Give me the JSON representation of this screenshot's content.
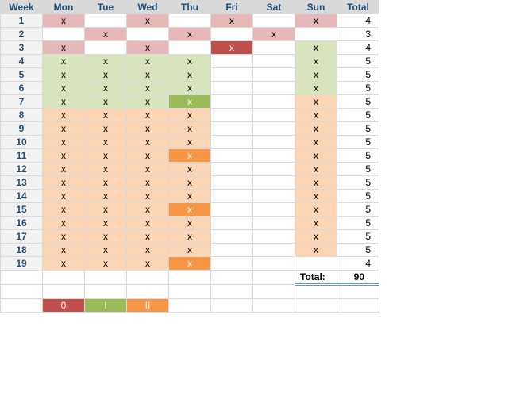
{
  "colors": {
    "pink": "#e6b8b7",
    "green_light": "#d8e4bc",
    "peach": "#fcd5b4",
    "red": "#c0504d",
    "green": "#9bbb59",
    "orange": "#f79646",
    "header_bg": "#d9d9d9",
    "header_text": "#1f4e79"
  },
  "headers": [
    "Week",
    "Mon",
    "Tue",
    "Wed",
    "Thu",
    "Fri",
    "Sat",
    "Sun",
    "Total"
  ],
  "rows": [
    {
      "week": "1",
      "cells": [
        [
          "x",
          "pink"
        ],
        [
          "",
          ""
        ],
        [
          "x",
          "pink"
        ],
        [
          "",
          ""
        ],
        [
          "x",
          "pink"
        ],
        [
          "",
          ""
        ],
        [
          "x",
          "pink"
        ]
      ],
      "total": "4"
    },
    {
      "week": "2",
      "cells": [
        [
          "",
          ""
        ],
        [
          "x",
          "pink"
        ],
        [
          "",
          ""
        ],
        [
          "x",
          "pink"
        ],
        [
          "",
          ""
        ],
        [
          "x",
          "pink"
        ],
        [
          "",
          ""
        ]
      ],
      "total": "3"
    },
    {
      "week": "3",
      "cells": [
        [
          "x",
          "pink"
        ],
        [
          "",
          ""
        ],
        [
          "x",
          "pink"
        ],
        [
          "",
          ""
        ],
        [
          "x",
          "red"
        ],
        [
          "",
          ""
        ],
        [
          "x",
          "green_light"
        ]
      ],
      "total": "4"
    },
    {
      "week": "4",
      "cells": [
        [
          "x",
          "green_light"
        ],
        [
          "x",
          "green_light"
        ],
        [
          "x",
          "green_light"
        ],
        [
          "x",
          "green_light"
        ],
        [
          "",
          ""
        ],
        [
          "",
          ""
        ],
        [
          "x",
          "green_light"
        ]
      ],
      "total": "5"
    },
    {
      "week": "5",
      "cells": [
        [
          "x",
          "green_light"
        ],
        [
          "x",
          "green_light"
        ],
        [
          "x",
          "green_light"
        ],
        [
          "x",
          "green_light"
        ],
        [
          "",
          ""
        ],
        [
          "",
          ""
        ],
        [
          "x",
          "green_light"
        ]
      ],
      "total": "5"
    },
    {
      "week": "6",
      "cells": [
        [
          "x",
          "green_light"
        ],
        [
          "x",
          "green_light"
        ],
        [
          "x",
          "green_light"
        ],
        [
          "x",
          "green_light"
        ],
        [
          "",
          ""
        ],
        [
          "",
          ""
        ],
        [
          "x",
          "green_light"
        ]
      ],
      "total": "5"
    },
    {
      "week": "7",
      "cells": [
        [
          "x",
          "green_light"
        ],
        [
          "x",
          "green_light"
        ],
        [
          "x",
          "green_light"
        ],
        [
          "x",
          "green"
        ],
        [
          "",
          ""
        ],
        [
          "",
          ""
        ],
        [
          "x",
          "peach"
        ]
      ],
      "total": "5"
    },
    {
      "week": "8",
      "cells": [
        [
          "x",
          "peach"
        ],
        [
          "x",
          "peach"
        ],
        [
          "x",
          "peach"
        ],
        [
          "x",
          "peach"
        ],
        [
          "",
          ""
        ],
        [
          "",
          ""
        ],
        [
          "x",
          "peach"
        ]
      ],
      "total": "5"
    },
    {
      "week": "9",
      "cells": [
        [
          "x",
          "peach"
        ],
        [
          "x",
          "peach"
        ],
        [
          "x",
          "peach"
        ],
        [
          "x",
          "peach"
        ],
        [
          "",
          ""
        ],
        [
          "",
          ""
        ],
        [
          "x",
          "peach"
        ]
      ],
      "total": "5"
    },
    {
      "week": "10",
      "cells": [
        [
          "x",
          "peach"
        ],
        [
          "x",
          "peach"
        ],
        [
          "x",
          "peach"
        ],
        [
          "x",
          "peach"
        ],
        [
          "",
          ""
        ],
        [
          "",
          ""
        ],
        [
          "x",
          "peach"
        ]
      ],
      "total": "5"
    },
    {
      "week": "11",
      "cells": [
        [
          "x",
          "peach"
        ],
        [
          "x",
          "peach"
        ],
        [
          "x",
          "peach"
        ],
        [
          "x",
          "orange"
        ],
        [
          "",
          ""
        ],
        [
          "",
          ""
        ],
        [
          "x",
          "peach"
        ]
      ],
      "total": "5"
    },
    {
      "week": "12",
      "cells": [
        [
          "x",
          "peach"
        ],
        [
          "x",
          "peach"
        ],
        [
          "x",
          "peach"
        ],
        [
          "x",
          "peach"
        ],
        [
          "",
          ""
        ],
        [
          "",
          ""
        ],
        [
          "x",
          "peach"
        ]
      ],
      "total": "5"
    },
    {
      "week": "13",
      "cells": [
        [
          "x",
          "peach"
        ],
        [
          "x",
          "peach"
        ],
        [
          "x",
          "peach"
        ],
        [
          "x",
          "peach"
        ],
        [
          "",
          ""
        ],
        [
          "",
          ""
        ],
        [
          "x",
          "peach"
        ]
      ],
      "total": "5"
    },
    {
      "week": "14",
      "cells": [
        [
          "x",
          "peach"
        ],
        [
          "x",
          "peach"
        ],
        [
          "x",
          "peach"
        ],
        [
          "x",
          "peach"
        ],
        [
          "",
          ""
        ],
        [
          "",
          ""
        ],
        [
          "x",
          "peach"
        ]
      ],
      "total": "5"
    },
    {
      "week": "15",
      "cells": [
        [
          "x",
          "peach"
        ],
        [
          "x",
          "peach"
        ],
        [
          "x",
          "peach"
        ],
        [
          "x",
          "orange"
        ],
        [
          "",
          ""
        ],
        [
          "",
          ""
        ],
        [
          "x",
          "peach"
        ]
      ],
      "total": "5"
    },
    {
      "week": "16",
      "cells": [
        [
          "x",
          "peach"
        ],
        [
          "x",
          "peach"
        ],
        [
          "x",
          "peach"
        ],
        [
          "x",
          "peach"
        ],
        [
          "",
          ""
        ],
        [
          "",
          ""
        ],
        [
          "x",
          "peach"
        ]
      ],
      "total": "5"
    },
    {
      "week": "17",
      "cells": [
        [
          "x",
          "peach"
        ],
        [
          "x",
          "peach"
        ],
        [
          "x",
          "peach"
        ],
        [
          "x",
          "peach"
        ],
        [
          "",
          ""
        ],
        [
          "",
          ""
        ],
        [
          "x",
          "peach"
        ]
      ],
      "total": "5"
    },
    {
      "week": "18",
      "cells": [
        [
          "x",
          "peach"
        ],
        [
          "x",
          "peach"
        ],
        [
          "x",
          "peach"
        ],
        [
          "x",
          "peach"
        ],
        [
          "",
          ""
        ],
        [
          "",
          ""
        ],
        [
          "x",
          "peach"
        ]
      ],
      "total": "5"
    },
    {
      "week": "19",
      "cells": [
        [
          "x",
          "peach"
        ],
        [
          "x",
          "peach"
        ],
        [
          "x",
          "peach"
        ],
        [
          "x",
          "orange"
        ],
        [
          "",
          ""
        ],
        [
          "",
          ""
        ],
        [
          "",
          ""
        ]
      ],
      "total": "4"
    }
  ],
  "grand_total": {
    "label": "Total:",
    "value": "90"
  },
  "legend": [
    {
      "label": "0",
      "color": "red"
    },
    {
      "label": "I",
      "color": "green"
    },
    {
      "label": "II",
      "color": "orange"
    }
  ]
}
